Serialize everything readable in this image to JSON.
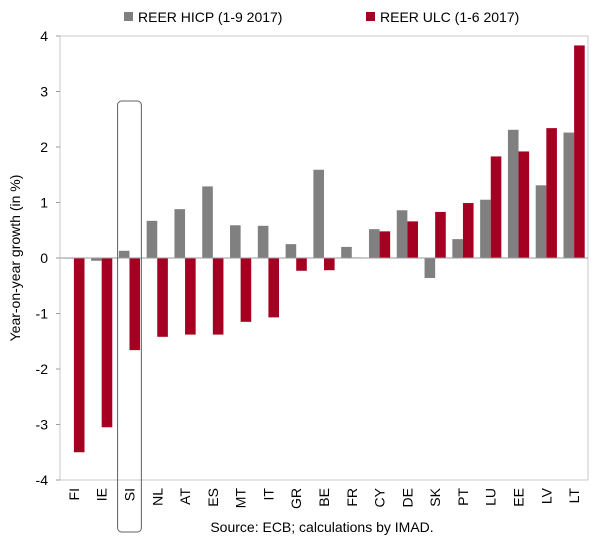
{
  "chart_data": {
    "type": "bar",
    "ylabel": "Year-on-year growth (in %)",
    "ylim": [
      -4,
      4
    ],
    "yticks": [
      4,
      3,
      2,
      1,
      0,
      -1,
      -2,
      -3,
      -4
    ],
    "categories": [
      "FI",
      "IE",
      "SI",
      "NL",
      "AT",
      "ES",
      "MT",
      "IT",
      "GR",
      "BE",
      "FR",
      "CY",
      "DE",
      "SK",
      "PT",
      "LU",
      "EE",
      "LV",
      "LT"
    ],
    "series": [
      {
        "name": "REER HICP (1-9 2017)",
        "color": "#808080",
        "values": [
          0.0,
          -0.05,
          0.13,
          0.67,
          0.88,
          1.29,
          0.59,
          0.58,
          0.25,
          1.59,
          0.2,
          0.52,
          0.86,
          -0.36,
          0.34,
          1.05,
          2.31,
          1.31,
          2.26
        ]
      },
      {
        "name": "REER ULC (1-6 2017)",
        "color": "#A50021",
        "values": [
          -3.5,
          -3.05,
          -1.66,
          -1.42,
          -1.38,
          -1.38,
          -1.15,
          -1.07,
          -0.23,
          -0.22,
          0.01,
          0.48,
          0.66,
          0.83,
          0.99,
          1.83,
          1.92,
          2.34,
          3.83
        ]
      }
    ],
    "highlight_category": "SI",
    "source": "Source: ECB; calculations by IMAD."
  }
}
